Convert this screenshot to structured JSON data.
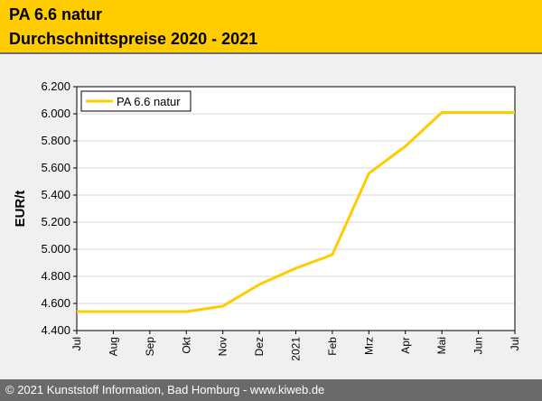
{
  "header": {
    "title_line1": "PA 6.6 natur",
    "title_line2": "Durchschnittspreise 2020 - 2021"
  },
  "footer": {
    "text": "© 2021 Kunststoff Information, Bad Homburg - www.kiweb.de"
  },
  "colors": {
    "header_bg": "#ffcc00",
    "series_line": "#ffcc00",
    "plot_bg": "#ffffff",
    "grid": "#d8d8d8",
    "footer_bg": "#6a6a6a"
  },
  "chart_data": {
    "type": "line",
    "title": "PA 6.6 natur",
    "subtitle": "Durchschnittspreise 2020 - 2021",
    "xlabel": "",
    "ylabel": "EUR/t",
    "categories": [
      "Jul",
      "Aug",
      "Sep",
      "Okt",
      "Nov",
      "Dez",
      "2021",
      "Feb",
      "Mrz",
      "Apr",
      "Mai",
      "Jun",
      "Jul"
    ],
    "series": [
      {
        "name": "PA 6.6 natur",
        "values": [
          4540,
          4540,
          4540,
          4540,
          4580,
          4740,
          4860,
          4960,
          5560,
          5760,
          6010,
          6010,
          6010
        ]
      }
    ],
    "ylim": [
      4400,
      6200
    ],
    "yticks": [
      4400,
      4600,
      4800,
      5000,
      5200,
      5400,
      5600,
      5800,
      6000,
      6200
    ],
    "ytick_labels": [
      "4.400",
      "4.600",
      "4.800",
      "5.000",
      "5.200",
      "5.400",
      "5.600",
      "5.800",
      "6.000",
      "6.200"
    ],
    "grid": true,
    "legend_position": "top-left"
  }
}
